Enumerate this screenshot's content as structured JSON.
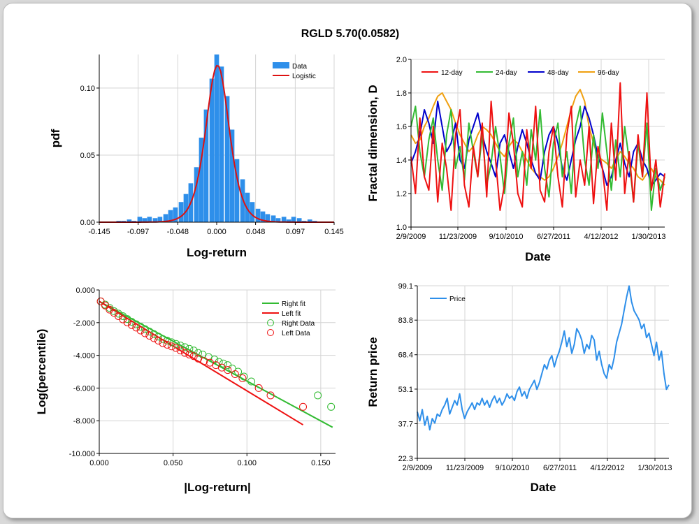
{
  "title": "RGLD 5.70(0.0582)",
  "colors": {
    "data_bar": "#2e8fea",
    "logistic": "#dd1111",
    "d12": "#ee1111",
    "d24": "#33bb33",
    "d48": "#0000cc",
    "d96": "#f0a010",
    "right": "#33bb33",
    "left": "#ee1111",
    "price": "#2e8fea"
  },
  "chart_data": [
    {
      "id": "histogram",
      "type": "bar",
      "xlabel": "Log-return",
      "ylabel": "pdf",
      "xlim": [
        -0.145,
        0.145
      ],
      "ylim": [
        0,
        0.125
      ],
      "xticks": [
        "-0.145",
        "-0.097",
        "-0.048",
        "0.000",
        "0.048",
        "0.097",
        "0.145"
      ],
      "yticks": [
        "0.00",
        "0.05",
        "0.10"
      ],
      "legend": [
        "Data",
        "Logistic"
      ],
      "bin_width": 0.0064,
      "bins": [
        [
          -0.121,
          0.001
        ],
        [
          -0.115,
          0.001
        ],
        [
          -0.108,
          0.002
        ],
        [
          -0.102,
          0.001
        ],
        [
          -0.095,
          0.004
        ],
        [
          -0.089,
          0.003
        ],
        [
          -0.083,
          0.004
        ],
        [
          -0.076,
          0.003
        ],
        [
          -0.07,
          0.004
        ],
        [
          -0.063,
          0.006
        ],
        [
          -0.057,
          0.009
        ],
        [
          -0.051,
          0.011
        ],
        [
          -0.044,
          0.015
        ],
        [
          -0.038,
          0.021
        ],
        [
          -0.032,
          0.029
        ],
        [
          -0.025,
          0.041
        ],
        [
          -0.019,
          0.063
        ],
        [
          -0.013,
          0.084
        ],
        [
          -0.006,
          0.107
        ],
        [
          0.0,
          0.126
        ],
        [
          0.006,
          0.116
        ],
        [
          0.013,
          0.094
        ],
        [
          0.019,
          0.069
        ],
        [
          0.025,
          0.047
        ],
        [
          0.032,
          0.032
        ],
        [
          0.038,
          0.022
        ],
        [
          0.044,
          0.015
        ],
        [
          0.051,
          0.01
        ],
        [
          0.057,
          0.008
        ],
        [
          0.063,
          0.006
        ],
        [
          0.07,
          0.005
        ],
        [
          0.076,
          0.003
        ],
        [
          0.083,
          0.004
        ],
        [
          0.089,
          0.002
        ],
        [
          0.095,
          0.004
        ],
        [
          0.102,
          0.003
        ],
        [
          0.108,
          0.001
        ],
        [
          0.115,
          0.002
        ],
        [
          0.121,
          0.001
        ]
      ],
      "logistic": {
        "mu": 0.001,
        "s": 0.0021
      }
    },
    {
      "id": "fractal",
      "type": "line",
      "xlabel": "Date",
      "ylabel": "Fractal dimension, D",
      "xticks": [
        "2/9/2009",
        "11/23/2009",
        "9/10/2010",
        "6/27/2011",
        "4/12/2012",
        "1/30/2013"
      ],
      "yticks": [
        "1.0",
        "1.2",
        "1.4",
        "1.6",
        "1.8",
        "2.0"
      ],
      "ylim": [
        1.0,
        2.0
      ],
      "legend": [
        "12-day",
        "24-day",
        "48-day",
        "96-day"
      ],
      "series": [
        {
          "name": "12-day",
          "values": [
            1.42,
            1.2,
            1.65,
            1.3,
            1.22,
            1.6,
            1.15,
            1.5,
            1.35,
            1.1,
            1.55,
            1.7,
            1.25,
            1.12,
            1.48,
            1.3,
            1.62,
            1.18,
            1.75,
            1.4,
            1.1,
            1.25,
            1.68,
            1.5,
            1.2,
            1.12,
            1.58,
            1.35,
            1.72,
            1.22,
            1.15,
            1.45,
            1.6,
            1.3,
            1.12,
            1.55,
            1.72,
            1.18,
            1.4,
            1.25,
            1.6,
            1.14,
            1.48,
            1.35,
            1.1,
            1.62,
            1.28,
            1.86,
            1.2,
            1.45,
            1.15,
            1.55,
            1.3,
            1.8,
            1.22,
            1.4,
            1.12,
            1.32
          ]
        },
        {
          "name": "24-day",
          "values": [
            1.6,
            1.72,
            1.45,
            1.3,
            1.52,
            1.65,
            1.4,
            1.22,
            1.55,
            1.7,
            1.35,
            1.48,
            1.28,
            1.62,
            1.45,
            1.3,
            1.55,
            1.25,
            1.38,
            1.6,
            1.42,
            1.2,
            1.5,
            1.65,
            1.3,
            1.45,
            1.25,
            1.58,
            1.4,
            1.7,
            1.35,
            1.18,
            1.5,
            1.62,
            1.3,
            1.45,
            1.2,
            1.6,
            1.72,
            1.4,
            1.25,
            1.55,
            1.35,
            1.68,
            1.45,
            1.22,
            1.52,
            1.3,
            1.6,
            1.4,
            1.15,
            1.5,
            1.3,
            1.62,
            1.1,
            1.35,
            1.22,
            1.3
          ]
        },
        {
          "name": "48-day",
          "values": [
            1.38,
            1.45,
            1.55,
            1.7,
            1.62,
            1.5,
            1.75,
            1.6,
            1.45,
            1.5,
            1.62,
            1.4,
            1.35,
            1.52,
            1.6,
            1.68,
            1.55,
            1.45,
            1.38,
            1.3,
            1.5,
            1.55,
            1.45,
            1.35,
            1.48,
            1.58,
            1.5,
            1.4,
            1.32,
            1.28,
            1.45,
            1.55,
            1.6,
            1.5,
            1.35,
            1.28,
            1.4,
            1.52,
            1.6,
            1.72,
            1.65,
            1.55,
            1.42,
            1.35,
            1.25,
            1.3,
            1.4,
            1.5,
            1.38,
            1.3,
            1.45,
            1.5,
            1.4,
            1.35,
            1.25,
            1.28,
            1.32,
            1.3
          ]
        },
        {
          "name": "96-day",
          "values": [
            1.55,
            1.5,
            1.52,
            1.6,
            1.65,
            1.72,
            1.78,
            1.8,
            1.75,
            1.7,
            1.62,
            1.55,
            1.5,
            1.45,
            1.48,
            1.55,
            1.6,
            1.58,
            1.55,
            1.5,
            1.45,
            1.42,
            1.48,
            1.52,
            1.5,
            1.45,
            1.4,
            1.35,
            1.32,
            1.3,
            1.28,
            1.3,
            1.35,
            1.42,
            1.5,
            1.6,
            1.7,
            1.78,
            1.82,
            1.75,
            1.6,
            1.5,
            1.42,
            1.4,
            1.38,
            1.35,
            1.4,
            1.45,
            1.42,
            1.38,
            1.35,
            1.3,
            1.28,
            1.32,
            1.35,
            1.3,
            1.28,
            1.25
          ]
        }
      ]
    },
    {
      "id": "tails",
      "type": "scatter",
      "xlabel": "|Log-return|",
      "ylabel": "Log(percentile)",
      "xlim": [
        0,
        0.16
      ],
      "ylim": [
        -10,
        0
      ],
      "xticks": [
        "0.000",
        "0.050",
        "0.100",
        "0.150"
      ],
      "yticks": [
        "0.000",
        "-2.000",
        "-4.000",
        "-6.000",
        "-8.000",
        "-10.000"
      ],
      "legend": [
        "Right fit",
        "Left fit",
        "Right Data",
        "Left Data"
      ],
      "right_fit": [
        [
          0.0,
          -0.7
        ],
        [
          0.158,
          -8.4
        ]
      ],
      "left_fit": [
        [
          0.0,
          -0.7
        ],
        [
          0.138,
          -8.25
        ]
      ],
      "right_data": [
        [
          0.001,
          -0.7
        ],
        [
          0.004,
          -0.9
        ],
        [
          0.007,
          -1.1
        ],
        [
          0.01,
          -1.3
        ],
        [
          0.013,
          -1.45
        ],
        [
          0.016,
          -1.6
        ],
        [
          0.019,
          -1.78
        ],
        [
          0.022,
          -1.95
        ],
        [
          0.025,
          -2.1
        ],
        [
          0.028,
          -2.25
        ],
        [
          0.031,
          -2.4
        ],
        [
          0.034,
          -2.55
        ],
        [
          0.037,
          -2.7
        ],
        [
          0.04,
          -2.85
        ],
        [
          0.043,
          -3.0
        ],
        [
          0.046,
          -3.1
        ],
        [
          0.049,
          -3.2
        ],
        [
          0.052,
          -3.3
        ],
        [
          0.055,
          -3.4
        ],
        [
          0.058,
          -3.5
        ],
        [
          0.061,
          -3.6
        ],
        [
          0.064,
          -3.7
        ],
        [
          0.067,
          -3.85
        ],
        [
          0.07,
          -3.95
        ],
        [
          0.074,
          -4.1
        ],
        [
          0.078,
          -4.25
        ],
        [
          0.081,
          -4.4
        ],
        [
          0.084,
          -4.5
        ],
        [
          0.087,
          -4.6
        ],
        [
          0.09,
          -4.8
        ],
        [
          0.094,
          -5.0
        ],
        [
          0.098,
          -5.3
        ],
        [
          0.103,
          -5.6
        ],
        [
          0.148,
          -6.45
        ],
        [
          0.157,
          -7.15
        ]
      ],
      "left_data": [
        [
          0.001,
          -0.7
        ],
        [
          0.004,
          -0.95
        ],
        [
          0.007,
          -1.2
        ],
        [
          0.01,
          -1.4
        ],
        [
          0.013,
          -1.6
        ],
        [
          0.016,
          -1.8
        ],
        [
          0.019,
          -1.98
        ],
        [
          0.022,
          -2.15
        ],
        [
          0.025,
          -2.3
        ],
        [
          0.028,
          -2.48
        ],
        [
          0.031,
          -2.65
        ],
        [
          0.034,
          -2.8
        ],
        [
          0.037,
          -2.95
        ],
        [
          0.04,
          -3.1
        ],
        [
          0.043,
          -3.25
        ],
        [
          0.046,
          -3.35
        ],
        [
          0.049,
          -3.45
        ],
        [
          0.052,
          -3.55
        ],
        [
          0.055,
          -3.7
        ],
        [
          0.058,
          -3.85
        ],
        [
          0.061,
          -3.95
        ],
        [
          0.064,
          -4.05
        ],
        [
          0.067,
          -4.2
        ],
        [
          0.071,
          -4.35
        ],
        [
          0.075,
          -4.45
        ],
        [
          0.079,
          -4.6
        ],
        [
          0.083,
          -4.75
        ],
        [
          0.087,
          -4.9
        ],
        [
          0.092,
          -5.15
        ],
        [
          0.097,
          -5.4
        ],
        [
          0.108,
          -6.0
        ],
        [
          0.116,
          -6.45
        ],
        [
          0.138,
          -7.15
        ]
      ]
    },
    {
      "id": "price",
      "type": "line",
      "xlabel": "Date",
      "ylabel": "Return price",
      "ylim": [
        22.3,
        99.1
      ],
      "xticks": [
        "2/9/2009",
        "11/23/2009",
        "9/10/2010",
        "6/27/2011",
        "4/12/2012",
        "1/30/2013"
      ],
      "yticks": [
        "22.3",
        "37.7",
        "53.1",
        "68.4",
        "83.8",
        "99.1"
      ],
      "legend": [
        "Price"
      ],
      "series": [
        {
          "name": "Price",
          "values": [
            43,
            39,
            44,
            37,
            41,
            35,
            40,
            38,
            42,
            41,
            44,
            46,
            49,
            42,
            45,
            48,
            46,
            51,
            44,
            40,
            43,
            45,
            47,
            44,
            47,
            46,
            49,
            46,
            48,
            45,
            48,
            50,
            47,
            49,
            46,
            48,
            51,
            49,
            50,
            48,
            52,
            54,
            50,
            52,
            49,
            53,
            55,
            57,
            53,
            56,
            60,
            64,
            62,
            66,
            68,
            63,
            67,
            70,
            74,
            79,
            72,
            76,
            69,
            73,
            80,
            78,
            75,
            69,
            73,
            71,
            77,
            75,
            66,
            70,
            64,
            60,
            58,
            64,
            62,
            67,
            74,
            78,
            82,
            88,
            94,
            99,
            92,
            88,
            86,
            84,
            80,
            82,
            76,
            78,
            73,
            68,
            74,
            66,
            70,
            60,
            53,
            55
          ]
        }
      ]
    }
  ]
}
